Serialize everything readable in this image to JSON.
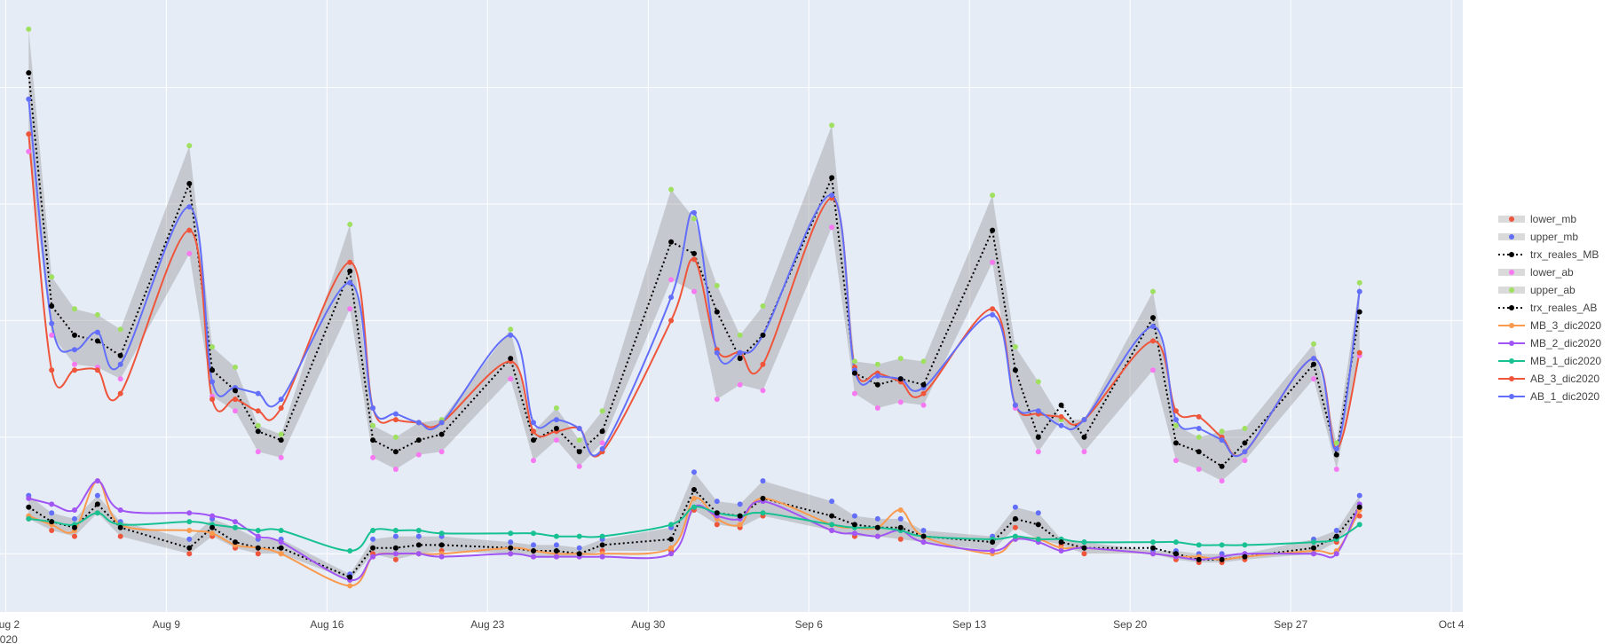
{
  "chart_data": {
    "type": "line",
    "title": "",
    "xlabel": "",
    "ylabel": "",
    "x_ticks": [
      {
        "date": "2020-08-02",
        "label": "Aug 2",
        "label2": "2020"
      },
      {
        "date": "2020-08-09",
        "label": "Aug 9",
        "label2": ""
      },
      {
        "date": "2020-08-16",
        "label": "Aug 16",
        "label2": ""
      },
      {
        "date": "2020-08-23",
        "label": "Aug 23",
        "label2": ""
      },
      {
        "date": "2020-08-30",
        "label": "Aug 30",
        "label2": ""
      },
      {
        "date": "2020-09-06",
        "label": "Sep 6",
        "label2": ""
      },
      {
        "date": "2020-09-13",
        "label": "Sep 13",
        "label2": ""
      },
      {
        "date": "2020-09-20",
        "label": "Sep 20",
        "label2": ""
      },
      {
        "date": "2020-09-27",
        "label": "Sep 27",
        "label2": ""
      },
      {
        "date": "2020-10-04",
        "label": "Oct 4",
        "label2": ""
      }
    ],
    "x_range": [
      "2020-08-01T18:00",
      "2020-10-04T12:00"
    ],
    "y_range": [
      0,
      21
    ],
    "y_gridlines": [
      2,
      6,
      10,
      14,
      18
    ],
    "y_tick_labels_visible": false,
    "grid": true,
    "legend_position": "right",
    "dates": [
      "2020-08-03",
      "2020-08-04",
      "2020-08-05",
      "2020-08-06",
      "2020-08-07",
      "2020-08-10",
      "2020-08-11",
      "2020-08-12",
      "2020-08-13",
      "2020-08-14",
      "2020-08-17",
      "2020-08-18",
      "2020-08-19",
      "2020-08-20",
      "2020-08-21",
      "2020-08-24",
      "2020-08-25",
      "2020-08-26",
      "2020-08-27",
      "2020-08-28",
      "2020-08-31",
      "2020-09-01",
      "2020-09-02",
      "2020-09-03",
      "2020-09-04",
      "2020-09-07",
      "2020-09-08",
      "2020-09-09",
      "2020-09-10",
      "2020-09-11",
      "2020-09-14",
      "2020-09-15",
      "2020-09-16",
      "2020-09-17",
      "2020-09-18",
      "2020-09-21",
      "2020-09-22",
      "2020-09-23",
      "2020-09-24",
      "2020-09-25",
      "2020-09-28",
      "2020-09-29",
      "2020-09-30"
    ],
    "legend": [
      {
        "name": "lower_mb",
        "color": "#ef553b",
        "style": "marker-band"
      },
      {
        "name": "upper_mb",
        "color": "#636efa",
        "style": "marker-band"
      },
      {
        "name": "trx_reales_MB",
        "color": "#000000",
        "style": "dotted-line"
      },
      {
        "name": "lower_ab",
        "color": "#f779f2",
        "style": "marker-band"
      },
      {
        "name": "upper_ab",
        "color": "#9fe060",
        "style": "marker-band"
      },
      {
        "name": "trx_reales_AB",
        "color": "#000000",
        "style": "dotted-line"
      },
      {
        "name": "MB_3_dic2020",
        "color": "#fa9a4f",
        "style": "line"
      },
      {
        "name": "MB_2_dic2020",
        "color": "#a155f5",
        "style": "line"
      },
      {
        "name": "MB_1_dic2020",
        "color": "#17c191",
        "style": "line"
      },
      {
        "name": "AB_3_dic2020",
        "color": "#ef553b",
        "style": "line"
      },
      {
        "name": "AB_1_dic2020",
        "color": "#636efa",
        "style": "line"
      }
    ],
    "series": [
      {
        "name": "lower_mb",
        "kind": "band",
        "color": "#ef553b",
        "values": [
          3.2,
          2.8,
          2.6,
          3.4,
          2.6,
          2.0,
          2.6,
          2.2,
          2.0,
          2.0,
          1.1,
          2.0,
          1.8,
          2.0,
          2.1,
          2.0,
          1.9,
          1.9,
          1.9,
          2.1,
          2.1,
          3.5,
          3.0,
          2.9,
          3.3,
          2.8,
          2.6,
          2.6,
          2.5,
          2.4,
          2.1,
          2.9,
          2.5,
          2.3,
          2.0,
          2.0,
          1.8,
          1.7,
          1.7,
          1.8,
          2.0,
          2.4,
          3.3
        ]
      },
      {
        "name": "upper_mb",
        "kind": "band",
        "color": "#636efa",
        "values": [
          4.0,
          3.4,
          3.2,
          4.0,
          3.1,
          2.5,
          3.2,
          2.9,
          2.5,
          2.5,
          1.3,
          2.5,
          2.6,
          2.6,
          2.6,
          2.4,
          2.3,
          2.3,
          2.2,
          2.5,
          2.9,
          4.8,
          3.8,
          3.7,
          4.5,
          3.8,
          3.3,
          3.2,
          3.2,
          2.8,
          2.6,
          3.6,
          3.4,
          2.5,
          2.4,
          2.1,
          2.1,
          2.0,
          2.0,
          2.0,
          2.5,
          2.8,
          4.0
        ]
      },
      {
        "name": "trx_reales_MB",
        "kind": "actual",
        "color": "#000000",
        "values": [
          3.6,
          3.1,
          2.9,
          3.7,
          2.9,
          2.2,
          2.9,
          2.4,
          2.2,
          2.2,
          1.2,
          2.2,
          2.2,
          2.3,
          2.3,
          2.2,
          2.1,
          2.1,
          2.0,
          2.3,
          2.5,
          4.2,
          3.4,
          3.3,
          3.9,
          3.3,
          3.0,
          2.9,
          2.9,
          2.6,
          2.4,
          3.2,
          3.0,
          2.4,
          2.2,
          2.2,
          2.0,
          1.8,
          1.8,
          1.9,
          2.2,
          2.6,
          3.6
        ]
      },
      {
        "name": "lower_ab",
        "kind": "band",
        "color": "#f779f2",
        "values": [
          15.8,
          9.5,
          8.5,
          8.4,
          8.0,
          12.3,
          7.4,
          6.9,
          5.5,
          5.3,
          10.4,
          5.3,
          4.9,
          5.4,
          5.5,
          8.0,
          5.2,
          5.9,
          5.0,
          5.8,
          11.4,
          11.0,
          7.3,
          7.8,
          7.6,
          13.2,
          7.5,
          7.0,
          7.2,
          7.1,
          12.0,
          7.0,
          5.5,
          6.6,
          5.5,
          8.3,
          5.2,
          4.9,
          4.5,
          5.2,
          8.0,
          4.9,
          8.8
        ]
      },
      {
        "name": "upper_ab",
        "kind": "band",
        "color": "#9fe060",
        "values": [
          20.0,
          11.5,
          10.4,
          10.2,
          9.7,
          16.0,
          9.1,
          8.4,
          6.4,
          6.1,
          13.3,
          6.4,
          6.0,
          6.5,
          6.6,
          9.7,
          6.2,
          7.0,
          5.9,
          6.9,
          14.5,
          13.5,
          11.2,
          9.5,
          10.5,
          16.7,
          8.6,
          8.5,
          8.7,
          8.6,
          14.3,
          9.1,
          7.9,
          6.6,
          6.6,
          11.0,
          6.4,
          6.0,
          6.2,
          6.3,
          9.2,
          5.8,
          11.3
        ]
      },
      {
        "name": "trx_reales_AB",
        "kind": "actual",
        "color": "#000000",
        "values": [
          18.5,
          10.5,
          9.5,
          9.3,
          8.8,
          14.7,
          8.3,
          7.6,
          6.2,
          5.9,
          11.7,
          5.9,
          5.5,
          5.9,
          6.1,
          8.7,
          5.9,
          6.3,
          5.5,
          6.2,
          12.7,
          12.3,
          10.3,
          8.7,
          9.5,
          14.9,
          8.2,
          7.8,
          8.0,
          7.8,
          13.1,
          8.3,
          6.0,
          7.1,
          6.0,
          10.1,
          5.8,
          5.5,
          5.0,
          5.8,
          8.5,
          5.4,
          10.3
        ]
      },
      {
        "name": "MB_3_dic2020",
        "kind": "forecast",
        "color": "#fa9a4f",
        "values": [
          3.3,
          3.0,
          2.8,
          4.5,
          3.0,
          2.8,
          2.7,
          2.3,
          2.2,
          2.0,
          0.9,
          1.9,
          2.0,
          2.0,
          2.0,
          2.2,
          2.1,
          2.0,
          2.0,
          2.0,
          2.2,
          3.9,
          3.2,
          3.0,
          3.9,
          3.0,
          2.9,
          2.9,
          3.5,
          2.6,
          2.0,
          2.5,
          2.5,
          2.2,
          2.2,
          2.0,
          1.9,
          1.9,
          1.8,
          1.9,
          2.1,
          2.1,
          3.5
        ]
      },
      {
        "name": "MB_2_dic2020",
        "kind": "forecast",
        "color": "#a155f5",
        "values": [
          3.9,
          3.7,
          3.5,
          4.5,
          3.5,
          3.4,
          3.3,
          3.1,
          2.6,
          2.4,
          1.1,
          1.9,
          2.0,
          2.0,
          1.9,
          2.0,
          1.9,
          1.9,
          1.9,
          1.9,
          2.0,
          3.6,
          3.3,
          3.2,
          3.8,
          2.8,
          2.7,
          2.6,
          2.8,
          2.4,
          2.1,
          2.5,
          2.4,
          2.1,
          2.2,
          2.0,
          1.9,
          1.8,
          1.9,
          2.0,
          2.0,
          2.0,
          3.7
        ]
      },
      {
        "name": "MB_1_dic2020",
        "kind": "forecast",
        "color": "#17c191",
        "values": [
          3.2,
          3.1,
          3.0,
          3.4,
          3.0,
          3.1,
          3.0,
          2.9,
          2.8,
          2.8,
          2.1,
          2.8,
          2.8,
          2.8,
          2.7,
          2.7,
          2.7,
          2.6,
          2.6,
          2.6,
          3.0,
          3.6,
          3.4,
          3.3,
          3.4,
          3.0,
          2.9,
          2.9,
          2.8,
          2.6,
          2.5,
          2.6,
          2.5,
          2.5,
          2.4,
          2.4,
          2.4,
          2.3,
          2.3,
          2.3,
          2.4,
          2.5,
          3.0
        ]
      },
      {
        "name": "AB_3_dic2020",
        "kind": "forecast",
        "color": "#ef553b",
        "values": [
          16.4,
          8.3,
          8.3,
          8.3,
          7.5,
          13.1,
          7.3,
          7.3,
          6.9,
          7.0,
          12.0,
          7.0,
          6.6,
          6.5,
          6.5,
          8.6,
          6.2,
          6.2,
          6.3,
          5.5,
          10.0,
          12.1,
          9.0,
          8.9,
          8.5,
          14.2,
          8.4,
          8.2,
          7.9,
          7.5,
          10.4,
          7.1,
          6.8,
          6.7,
          6.6,
          9.3,
          6.9,
          6.7,
          6.0,
          5.5,
          8.7,
          5.6,
          8.9
        ]
      },
      {
        "name": "AB_1_dic2020",
        "kind": "forecast",
        "color": "#636efa",
        "values": [
          17.6,
          9.9,
          9.0,
          9.6,
          8.5,
          13.9,
          7.9,
          7.7,
          7.5,
          7.3,
          11.3,
          7.0,
          6.8,
          6.5,
          6.5,
          9.5,
          6.5,
          6.6,
          6.3,
          5.6,
          10.8,
          13.7,
          8.9,
          8.9,
          9.5,
          14.3,
          8.3,
          8.1,
          8.0,
          7.7,
          10.2,
          7.1,
          6.9,
          6.4,
          6.6,
          9.8,
          6.6,
          6.3,
          5.9,
          5.5,
          8.7,
          5.6,
          11.0
        ]
      }
    ]
  }
}
